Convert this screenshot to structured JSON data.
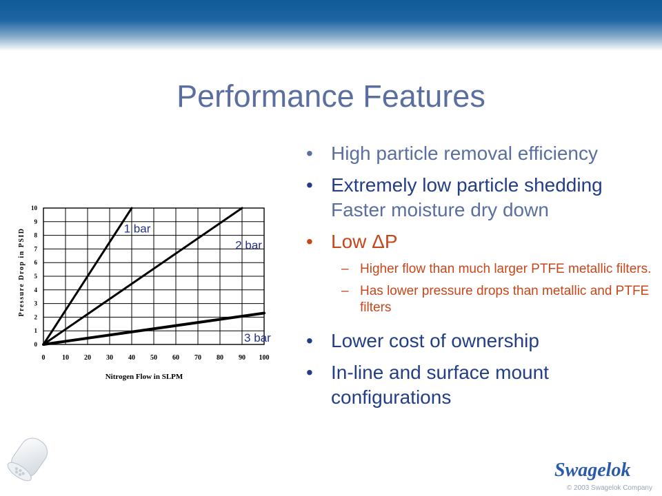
{
  "slide": {
    "title": "Performance Features",
    "bullets": [
      {
        "text": "High particle removal efficiency"
      },
      {
        "text": "Extremely low particle shedding",
        "text2": "Faster moisture dry down"
      },
      {
        "text": "Low ΔP",
        "sub": [
          "Higher flow than much larger PTFE metallic filters.",
          "Has lower pressure drops than metallic and PTFE filters"
        ]
      },
      {
        "text": "Lower cost of ownership"
      },
      {
        "text": "In-line and surface mount configurations"
      }
    ],
    "footer": "© 2003 Swagelok Company",
    "logo_text": "Swagelok"
  },
  "chart_data": {
    "type": "line",
    "xlabel": "Nitrogen Flow in SLPM",
    "ylabel": "Pressure Drop in PSID",
    "xlim": [
      0,
      100
    ],
    "ylim": [
      0,
      10
    ],
    "xticks": [
      0,
      10,
      20,
      30,
      40,
      50,
      60,
      70,
      80,
      90,
      100
    ],
    "yticks": [
      0,
      1,
      2,
      3,
      4,
      5,
      6,
      7,
      8,
      9,
      10
    ],
    "grid": true,
    "series": [
      {
        "name": "1 bar",
        "x": [
          0,
          40
        ],
        "y": [
          0,
          10
        ]
      },
      {
        "name": "2 bar",
        "x": [
          0,
          90
        ],
        "y": [
          0,
          10
        ]
      },
      {
        "name": "3 bar",
        "x": [
          0,
          100
        ],
        "y": [
          0,
          2.3
        ]
      }
    ]
  },
  "colors": {
    "title": "#5a6fa0",
    "bullet_blue": "#233e88",
    "sub_orange": "#c8461a",
    "series_label": "#23308a"
  }
}
